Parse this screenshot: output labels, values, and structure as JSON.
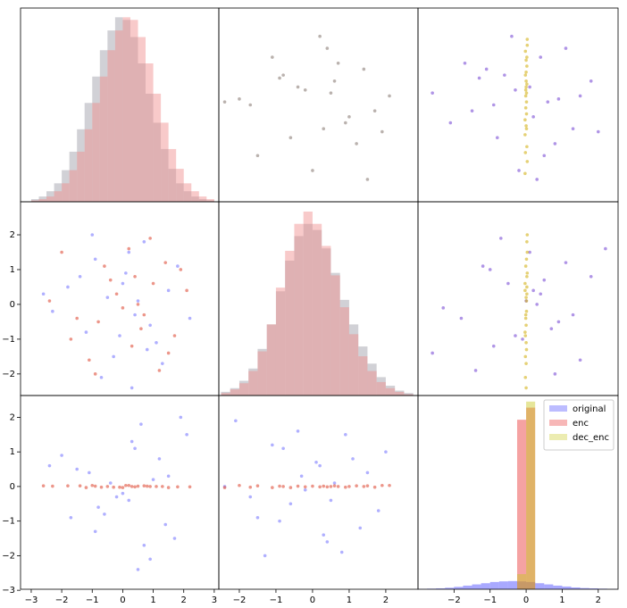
{
  "chart_data": [
    {
      "type": "histogram",
      "xlim": [
        -3.35,
        3.15
      ],
      "ylim": [
        0,
        147
      ],
      "bins": [
        -3,
        -2.75,
        -2.5,
        -2.25,
        -2,
        -1.75,
        -1.5,
        -1.25,
        -1,
        -0.75,
        -0.5,
        -0.25,
        0,
        0.25,
        0.5,
        0.75,
        1,
        1.25,
        1.5,
        1.75,
        2,
        2.25,
        2.5,
        2.75,
        3
      ],
      "series": [
        {
          "color": "#9a9aa4",
          "values": [
            2,
            4,
            8,
            14,
            24,
            38,
            55,
            75,
            95,
            115,
            130,
            140,
            138,
            125,
            105,
            82,
            60,
            40,
            25,
            14,
            8,
            4,
            2,
            1
          ]
        },
        {
          "color": "#f08a8a",
          "values": [
            1,
            2,
            4,
            8,
            14,
            24,
            38,
            55,
            75,
            95,
            115,
            130,
            140,
            138,
            125,
            105,
            82,
            60,
            40,
            25,
            14,
            8,
            4,
            2
          ]
        }
      ]
    },
    {
      "type": "scatter",
      "xlim": [
        -2.56,
        2.88
      ],
      "ylim": [
        -3.35,
        3.15
      ],
      "series": [
        {
          "color": "#8c7f78",
          "x": [
            -1.5,
            -0.6,
            0.3,
            1.0,
            1.7,
            -2.0,
            -0.2,
            0.6,
            1.4,
            -1.1,
            0.0,
            0.9,
            2.1,
            -0.8,
            0.4,
            1.2,
            -1.7,
            -0.4,
            0.7,
            1.9,
            -2.4,
            -0.9,
            0.2,
            1.5,
            0.5
          ],
          "values": [
            -1.8,
            -1.2,
            -0.9,
            -0.5,
            -0.3,
            0.1,
            0.4,
            0.7,
            1.1,
            1.5,
            -2.3,
            -0.7,
            0.2,
            0.9,
            1.8,
            -1.4,
            -0.1,
            0.5,
            1.3,
            -1.0,
            0.0,
            0.8,
            2.2,
            -2.6,
            0.3
          ]
        }
      ]
    },
    {
      "type": "scatter",
      "xlim": [
        -3.0,
        2.55
      ],
      "ylim": [
        -3.35,
        3.15
      ],
      "series": [
        {
          "color": "#7b4fd6",
          "x": [
            0.5,
            -0.8,
            1.3,
            0.2,
            -1.5,
            0.9,
            -0.3,
            1.8,
            -1.1,
            0.4,
            -0.2,
            -2.1,
            1.5,
            -0.6,
            1.1,
            0.8,
            -0.9,
            0.1,
            -1.7,
            2.0,
            0.6,
            -1.3,
            -0.4,
            0.3,
            -2.6
          ],
          "values": [
            -1.8,
            -1.2,
            -0.9,
            -0.5,
            -0.3,
            0.1,
            0.4,
            0.7,
            1.1,
            1.5,
            -2.3,
            -0.7,
            0.2,
            0.9,
            1.8,
            -1.4,
            -0.1,
            0.5,
            1.3,
            -1.0,
            0.0,
            0.8,
            2.2,
            -2.6,
            0.3
          ]
        },
        {
          "color": "#d4b21a",
          "x": [
            0.02,
            -0.03,
            0.01,
            0.0,
            -0.02,
            0.03,
            -0.01,
            0.02,
            0.0,
            -0.03,
            0.01,
            -0.02,
            0.03,
            0.0,
            -0.01,
            0.02,
            -0.02,
            0.01,
            0.0,
            0.03,
            -0.03,
            0.01,
            -0.01,
            0.02,
            0.0
          ],
          "values": [
            -1.5,
            -0.6,
            0.3,
            1.0,
            1.7,
            -2.0,
            -0.2,
            0.6,
            1.4,
            -1.1,
            0.0,
            0.9,
            2.1,
            -0.8,
            0.4,
            1.2,
            -1.7,
            -0.4,
            0.7,
            1.9,
            -2.4,
            -0.9,
            0.2,
            1.5,
            0.5
          ]
        }
      ]
    },
    {
      "type": "scatter",
      "xlim": [
        -3.35,
        3.15
      ],
      "ylim": [
        -2.62,
        2.95
      ],
      "yticks": [
        {
          "value": -2,
          "label": "−2"
        },
        {
          "value": -1,
          "label": "−1"
        },
        0,
        1,
        2
      ],
      "series": [
        {
          "color": "#7b7bff",
          "x": [
            -1.8,
            -1.2,
            -0.9,
            -0.5,
            -0.3,
            0.1,
            0.4,
            0.7,
            1.1,
            1.5,
            -2.3,
            -0.7,
            0.2,
            0.9,
            1.8,
            -1.4,
            -0.1,
            0.5,
            1.3,
            -1.0,
            0.0,
            0.8,
            2.2,
            -2.6,
            0.3
          ],
          "values": [
            0.5,
            -0.8,
            1.3,
            0.2,
            -1.5,
            0.9,
            -0.3,
            1.8,
            -1.1,
            0.4,
            -0.2,
            -2.1,
            1.5,
            -0.6,
            1.1,
            0.8,
            -0.9,
            0.1,
            -1.7,
            2.0,
            0.6,
            -1.3,
            -0.4,
            0.3,
            -2.4
          ]
        },
        {
          "color": "#e0503c",
          "x": [
            -1.5,
            -0.6,
            0.3,
            1.0,
            1.7,
            -2.0,
            -0.2,
            0.6,
            1.4,
            -1.1,
            0.0,
            0.9,
            2.1,
            -0.8,
            0.4,
            1.2,
            -1.7,
            -0.4,
            0.7,
            1.9,
            -2.4,
            -0.9,
            0.2,
            1.5,
            0.5
          ],
          "values": [
            -0.4,
            1.1,
            -1.2,
            0.6,
            -0.9,
            1.5,
            0.3,
            -0.7,
            1.2,
            -1.6,
            -0.1,
            1.9,
            0.4,
            -0.5,
            0.8,
            -1.9,
            -1.0,
            0.7,
            -0.3,
            1.0,
            0.1,
            -2.0,
            1.6,
            -1.4,
            0.0
          ]
        }
      ]
    },
    {
      "type": "histogram",
      "xlim": [
        -2.56,
        2.88
      ],
      "ylim": [
        0,
        158
      ],
      "bins": [
        -2.5,
        -2.25,
        -2,
        -1.75,
        -1.5,
        -1.25,
        -1,
        -0.75,
        -0.5,
        -0.25,
        0,
        0.25,
        0.5,
        0.75,
        1,
        1.25,
        1.5,
        1.75,
        2,
        2.25,
        2.5,
        2.75
      ],
      "series": [
        {
          "color": "#9a9aa4",
          "values": [
            3,
            6,
            12,
            22,
            38,
            58,
            85,
            110,
            130,
            140,
            135,
            120,
            100,
            78,
            58,
            40,
            26,
            15,
            8,
            4,
            2
          ]
        },
        {
          "color": "#f08a8a",
          "values": [
            2,
            5,
            10,
            20,
            36,
            58,
            88,
            118,
            140,
            150,
            140,
            122,
            98,
            72,
            50,
            32,
            20,
            11,
            6,
            3,
            1
          ]
        }
      ]
    },
    {
      "type": "scatter",
      "xlim": [
        -3.0,
        2.55
      ],
      "ylim": [
        -2.62,
        2.95
      ],
      "series": [
        {
          "color": "#7b4fd6",
          "x": [
            -1.8,
            -1.2,
            -0.9,
            -0.5,
            -0.3,
            0.1,
            0.4,
            0.7,
            1.1,
            1.5,
            -2.3,
            -0.7,
            0.2,
            0.9,
            1.8,
            -1.4,
            -0.1,
            0.5,
            1.3,
            -1.0,
            0.0,
            0.8,
            2.2,
            -2.6,
            0.3
          ],
          "values": [
            -0.4,
            1.1,
            -1.2,
            0.6,
            -0.9,
            1.5,
            0.3,
            -0.7,
            1.2,
            -1.6,
            -0.1,
            1.9,
            0.4,
            -0.5,
            0.8,
            -1.9,
            -1.0,
            0.7,
            -0.3,
            1.0,
            0.1,
            -2.0,
            1.6,
            -1.4,
            0.0
          ]
        },
        {
          "color": "#d4b21a",
          "x": [
            0.02,
            -0.03,
            0.01,
            0.0,
            -0.02,
            0.03,
            -0.01,
            0.02,
            0.0,
            -0.03,
            0.01,
            -0.02,
            0.03,
            0.0,
            -0.01,
            0.02,
            -0.02,
            0.01,
            0.0,
            0.03,
            -0.03,
            0.01,
            -0.01,
            0.02,
            0.0
          ],
          "values": [
            0.5,
            -0.8,
            1.3,
            0.2,
            -1.5,
            0.9,
            -0.3,
            1.8,
            -1.1,
            0.4,
            -0.2,
            -2.1,
            1.5,
            -0.6,
            1.1,
            0.8,
            -0.9,
            0.1,
            -1.7,
            2.0,
            0.6,
            -1.3,
            -0.4,
            0.3,
            -2.4
          ]
        }
      ]
    },
    {
      "type": "scatter",
      "xlim": [
        -3.35,
        3.15
      ],
      "ylim": [
        -2.97,
        2.63
      ],
      "xticks": [
        {
          "value": -3,
          "label": "−3"
        },
        {
          "value": -2,
          "label": "−2"
        },
        {
          "value": -1,
          "label": "−1"
        },
        0,
        1,
        2,
        3
      ],
      "yticks": [
        {
          "value": -3,
          "label": "−3"
        },
        {
          "value": -2,
          "label": "−2"
        },
        {
          "value": -1,
          "label": "−1"
        },
        0,
        1,
        2
      ],
      "series": [
        {
          "color": "#7b7bff",
          "x": [
            -1.5,
            -0.6,
            0.3,
            1.0,
            1.7,
            -2.0,
            -0.2,
            0.6,
            1.4,
            -1.1,
            0.0,
            0.9,
            2.1,
            -0.8,
            0.4,
            1.2,
            -1.7,
            -0.4,
            0.7,
            1.9,
            -2.4,
            -0.9,
            0.2,
            1.5,
            0.5
          ],
          "values": [
            0.5,
            -0.8,
            1.3,
            0.2,
            -1.5,
            0.9,
            -0.3,
            1.8,
            -1.1,
            0.4,
            -0.2,
            -2.1,
            1.5,
            -0.6,
            1.1,
            0.8,
            -0.9,
            0.1,
            -1.7,
            2.0,
            0.6,
            -1.3,
            -0.4,
            0.3,
            -2.4
          ]
        },
        {
          "color": "#e0503c",
          "x": [
            -1.8,
            -1.2,
            -0.9,
            -0.5,
            -0.3,
            0.1,
            0.4,
            0.7,
            1.1,
            1.5,
            -2.3,
            -0.7,
            0.2,
            0.9,
            1.8,
            -1.4,
            -0.1,
            0.5,
            1.3,
            -1.0,
            0.0,
            0.8,
            2.2,
            -2.6,
            0.3
          ],
          "values": [
            0.02,
            -0.03,
            0.01,
            0.0,
            -0.02,
            0.03,
            -0.01,
            0.02,
            0.0,
            -0.03,
            0.01,
            -0.02,
            0.03,
            0.0,
            -0.01,
            0.02,
            -0.02,
            0.01,
            0.0,
            0.03,
            -0.03,
            0.01,
            -0.01,
            0.02,
            0.0
          ]
        }
      ]
    },
    {
      "type": "scatter",
      "xlim": [
        -2.56,
        2.88
      ],
      "ylim": [
        -2.97,
        2.63
      ],
      "xticks": [
        {
          "value": -2,
          "label": "−2"
        },
        {
          "value": -1,
          "label": "−1"
        },
        0,
        1,
        2
      ],
      "series": [
        {
          "color": "#7b7bff",
          "x": [
            0.5,
            -0.8,
            1.3,
            0.2,
            -1.5,
            0.9,
            -0.3,
            1.8,
            -1.1,
            0.4,
            -0.2,
            -2.1,
            1.5,
            -0.6,
            1.1,
            0.8,
            -0.9,
            0.1,
            -1.7,
            2.0,
            0.6,
            -1.3,
            -0.4,
            0.3,
            -2.4
          ],
          "values": [
            -0.4,
            1.1,
            -1.2,
            0.6,
            -0.9,
            1.5,
            0.3,
            -0.7,
            1.2,
            -1.6,
            -0.1,
            1.9,
            0.4,
            -0.5,
            0.8,
            -1.9,
            -1.0,
            0.7,
            -0.3,
            1.0,
            0.1,
            -2.0,
            1.6,
            -1.4,
            0.0
          ]
        },
        {
          "color": "#e0503c",
          "x": [
            -1.5,
            -0.6,
            0.3,
            1.0,
            1.7,
            -2.0,
            -0.2,
            0.6,
            1.4,
            -1.1,
            0.0,
            0.9,
            2.1,
            -0.8,
            0.4,
            1.2,
            -1.7,
            -0.4,
            0.7,
            1.9,
            -2.4,
            -0.9,
            0.2,
            1.5,
            0.5
          ],
          "values": [
            0.02,
            -0.03,
            0.01,
            0.0,
            -0.02,
            0.03,
            -0.01,
            0.02,
            0.0,
            -0.03,
            0.01,
            -0.02,
            0.03,
            0.0,
            -0.01,
            0.02,
            -0.02,
            0.01,
            0.0,
            0.03,
            -0.03,
            0.01,
            -0.01,
            0.02,
            0.0
          ]
        }
      ]
    },
    {
      "type": "histogram",
      "xlim": [
        -3.0,
        2.55
      ],
      "ylim": [
        0,
        640
      ],
      "legend": "upper right",
      "xticks": [
        {
          "value": -2,
          "label": "−2"
        },
        {
          "value": -1,
          "label": "−1"
        },
        0,
        1,
        2
      ],
      "bins": [
        -3,
        -2.75,
        -2.5,
        -2.25,
        -2,
        -1.75,
        -1.5,
        -1.25,
        -1,
        -0.75,
        -0.5,
        -0.25,
        0,
        0.25,
        0.5,
        0.75,
        1,
        1.25,
        1.5,
        1.75,
        2,
        2.25,
        2.5
      ],
      "series": [
        {
          "name": "original",
          "color": "#4040ff",
          "values": [
            1,
            2,
            3,
            5,
            8,
            12,
            16,
            20,
            24,
            26,
            27,
            26,
            24,
            20,
            16,
            12,
            9,
            6,
            4,
            3,
            2,
            1
          ]
        },
        {
          "name": "enc",
          "color": "#e83030",
          "values": [
            0,
            0,
            0,
            0,
            0,
            0,
            0,
            0,
            0,
            0,
            0,
            560,
            600,
            0,
            0,
            0,
            0,
            0,
            0,
            0,
            0,
            0
          ]
        },
        {
          "name": "dec_enc",
          "color": "#c8c820",
          "values": [
            0,
            0,
            0,
            0,
            0,
            0,
            0,
            0,
            0,
            0,
            0,
            50,
            620,
            0,
            0,
            0,
            0,
            0,
            0,
            0,
            0,
            0
          ]
        }
      ]
    }
  ]
}
